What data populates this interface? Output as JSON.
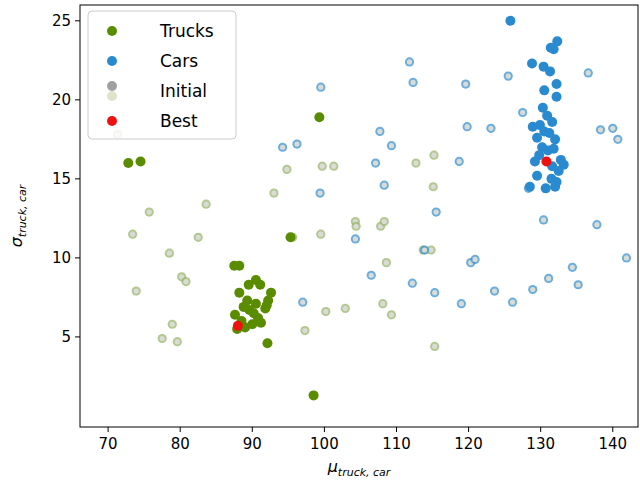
{
  "chart_data": {
    "type": "scatter",
    "xlabel": "μ",
    "xlabel_subscript": "truck, car",
    "ylabel": "σ",
    "ylabel_subscript": "truck, car",
    "xlim": [
      66.1,
      143.5
    ],
    "ylim": [
      -0.7,
      26.0
    ],
    "xticks": [
      70,
      80,
      90,
      100,
      110,
      120,
      130,
      140
    ],
    "yticks": [
      5,
      10,
      15,
      20,
      25
    ],
    "grid": false,
    "legend": "upper left",
    "series": [
      {
        "name": "Initial",
        "color": "#a0a0a0",
        "marker": "ring",
        "x": [
          71.3,
          73.4,
          73.9,
          75.7,
          77.5,
          78.5,
          78.9,
          79.6,
          80.2,
          80.8,
          82.5,
          83.6,
          93.0,
          94.8,
          95.6,
          97.3,
          99.5,
          99.7,
          101.3,
          102.9,
          104.3,
          104.4,
          107.8,
          108.3,
          108.6,
          108.1,
          109.3,
          112.7,
          113.7,
          114.8,
          115.1,
          115.2,
          115.3,
          100.2,
          94.2,
          96.2,
          97.0,
          99.5,
          99.4,
          104.3,
          106.5,
          107.1,
          107.7,
          108.3,
          109.3,
          111.8,
          112.3,
          112.2,
          113.9,
          115.3,
          115.5,
          118.7,
          119.0,
          119.6,
          119.8,
          120.3,
          120.9,
          123.1,
          123.6,
          125.5,
          126.1,
          127.5,
          128.3,
          128.9,
          130.4,
          131.1,
          134.4,
          135.2,
          136.6,
          137.8,
          138.3,
          140.0,
          140.7,
          141.9
        ],
        "values": [
          17.8,
          11.5,
          7.9,
          12.9,
          4.9,
          10.3,
          5.8,
          4.7,
          8.8,
          8.5,
          11.3,
          13.4,
          14.1,
          15.6,
          11.3,
          5.4,
          11.5,
          15.8,
          15.8,
          6.8,
          12.3,
          12.0,
          12.0,
          12.3,
          9.7,
          7.1,
          6.4,
          16.0,
          10.5,
          10.5,
          14.5,
          16.5,
          4.4,
          6.6,
          17.0,
          17.2,
          7.2,
          20.8,
          14.1,
          11.2,
          8.9,
          16.0,
          18.0,
          14.6,
          17.1,
          22.4,
          21.1,
          8.4,
          10.5,
          7.8,
          12.9,
          16.1,
          7.1,
          21.0,
          18.3,
          9.7,
          9.9,
          18.2,
          7.9,
          21.5,
          7.2,
          19.2,
          14.4,
          8.0,
          12.4,
          8.7,
          9.4,
          8.3,
          21.7,
          12.1,
          18.1,
          18.2,
          17.5,
          10.0
        ],
        "colors": [
          "#9ab56c",
          "#9ab56c",
          "#9ab56c",
          "#9ab56c",
          "#9ab56c",
          "#9ab56c",
          "#9ab56c",
          "#9ab56c",
          "#9ab56c",
          "#9ab56c",
          "#9ab56c",
          "#9ab56c",
          "#9ab56c",
          "#9ab56c",
          "#9ab56c",
          "#9ab56c",
          "#9ab56c",
          "#9ab56c",
          "#9ab56c",
          "#9ab56c",
          "#9ab56c",
          "#9ab56c",
          "#9ab56c",
          "#9ab56c",
          "#9ab56c",
          "#9ab56c",
          "#9ab56c",
          "#9ab56c",
          "#9ab56c",
          "#9ab56c",
          "#9ab56c",
          "#9ab56c",
          "#9ab56c",
          "#9ab56c",
          "#3a92d0",
          "#3a92d0",
          "#3a92d0",
          "#3a92d0",
          "#3a92d0",
          "#3a92d0",
          "#3a92d0",
          "#3a92d0",
          "#3a92d0",
          "#3a92d0",
          "#3a92d0",
          "#3a92d0",
          "#3a92d0",
          "#3a92d0",
          "#3a92d0",
          "#3a92d0",
          "#3a92d0",
          "#3a92d0",
          "#3a92d0",
          "#3a92d0",
          "#3a92d0",
          "#3a92d0",
          "#3a92d0",
          "#3a92d0",
          "#3a92d0",
          "#3a92d0",
          "#3a92d0",
          "#3a92d0",
          "#3a92d0",
          "#3a92d0",
          "#3a92d0",
          "#3a92d0",
          "#3a92d0",
          "#3a92d0",
          "#3a92d0",
          "#3a92d0",
          "#3a92d0",
          "#3a92d0",
          "#3a92d0",
          "#3a92d0"
        ]
      },
      {
        "name": "Trucks",
        "color": "#5a8c00",
        "marker": "circle",
        "x": [
          72.8,
          74.5,
          99.3,
          95.3,
          98.5,
          92.1,
          87.5,
          88.2,
          90.5,
          91.1,
          88.2,
          89.3,
          90.5,
          92.6,
          92.2,
          91.8,
          87.6,
          88.5,
          89.0,
          90.0,
          90.8,
          91.2,
          89.6,
          87.9,
          88.8,
          90.2,
          92.0,
          89.5
        ],
        "values": [
          16.0,
          16.1,
          18.9,
          11.3,
          1.3,
          4.6,
          9.5,
          9.5,
          8.6,
          8.3,
          7.8,
          7.3,
          7.1,
          7.8,
          7.3,
          6.8,
          6.4,
          6.0,
          5.6,
          5.8,
          6.2,
          5.9,
          6.7,
          5.5,
          6.9,
          6.5,
          7.0,
          8.3
        ]
      },
      {
        "name": "Cars",
        "color": "#2a8ad0",
        "marker": "circle",
        "x": [
          125.8,
          128.8,
          132.3,
          131.8,
          131.4,
          130.4,
          131.3,
          132.2,
          130.5,
          132.2,
          130.3,
          130.9,
          131.6,
          128.9,
          129.9,
          130.5,
          131.2,
          132.0,
          129.5,
          130.2,
          131.8,
          132.8,
          133.2,
          131.0,
          129.2,
          129.8,
          131.6,
          132.5,
          129.5,
          131.5,
          132.2,
          128.5,
          130.7,
          132.0
        ],
        "values": [
          25.0,
          22.3,
          23.7,
          23.2,
          23.3,
          22.1,
          21.8,
          21.0,
          20.6,
          20.2,
          19.5,
          19.0,
          18.6,
          18.3,
          18.4,
          18.0,
          17.9,
          17.5,
          17.6,
          17.0,
          16.9,
          16.2,
          15.9,
          16.8,
          16.1,
          16.5,
          15.8,
          15.5,
          15.2,
          15.0,
          14.8,
          14.5,
          14.4,
          14.5
        ]
      },
      {
        "name": "Best",
        "color": "#ee1111",
        "marker": "circle",
        "x": [
          88.0,
          130.8
        ],
        "values": [
          5.7,
          16.1
        ]
      }
    ]
  }
}
